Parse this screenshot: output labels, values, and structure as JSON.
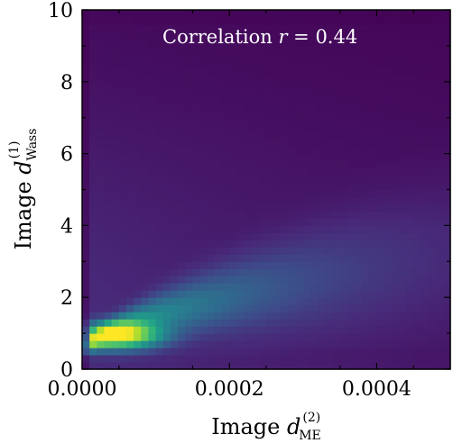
{
  "chart_data": {
    "type": "heatmap",
    "title": "",
    "annotation": {
      "prefix": "Correlation ",
      "var": "r",
      "value": " = 0.44"
    },
    "xlabel": {
      "prefix": "Image ",
      "var": "d",
      "sub": "ME",
      "sup": "(2)"
    },
    "ylabel": {
      "prefix": "Image ",
      "var": "d",
      "sub": "Wass",
      "sup": "(1)"
    },
    "xlim": [
      0,
      0.0005
    ],
    "ylim": [
      0,
      10
    ],
    "x_ticks": [
      {
        "value": 0.0,
        "label": "0.0000"
      },
      {
        "value": 0.0002,
        "label": "0.0002"
      },
      {
        "value": 0.0004,
        "label": "0.0004"
      }
    ],
    "y_ticks": [
      {
        "value": 0,
        "label": "0"
      },
      {
        "value": 2,
        "label": "2"
      },
      {
        "value": 4,
        "label": "4"
      },
      {
        "value": 6,
        "label": "6"
      },
      {
        "value": 8,
        "label": "8"
      },
      {
        "value": 10,
        "label": "10"
      }
    ],
    "bins": {
      "nx": 50,
      "ny": 50
    },
    "density_peak": {
      "x": 5e-05,
      "y": 0.95
    },
    "colormap": "viridis",
    "background_color": "#440154",
    "grid": false
  }
}
